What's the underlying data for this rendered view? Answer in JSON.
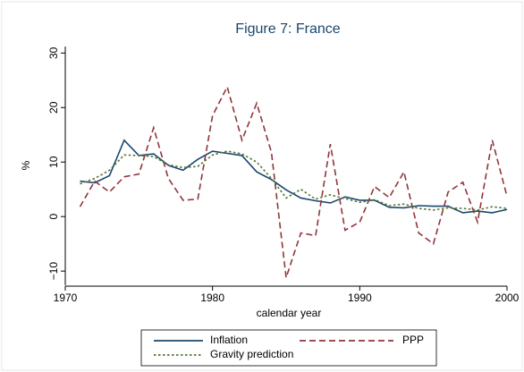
{
  "chart_data": {
    "type": "line",
    "title": "Figure 7: France",
    "xlabel": "calendar year",
    "ylabel": "%",
    "x": [
      1971,
      1972,
      1973,
      1974,
      1975,
      1976,
      1977,
      1978,
      1979,
      1980,
      1981,
      1982,
      1983,
      1984,
      1985,
      1986,
      1987,
      1988,
      1989,
      1990,
      1991,
      1992,
      1993,
      1994,
      1995,
      1996,
      1997,
      1998,
      1999,
      2000
    ],
    "series": [
      {
        "name": "Inflation",
        "color": "#1a476f",
        "line_style": "solid",
        "values": [
          6.5,
          6.2,
          7.5,
          14.0,
          11.2,
          11.5,
          9.4,
          8.5,
          10.5,
          12.0,
          11.6,
          11.2,
          8.2,
          6.8,
          4.9,
          3.4,
          2.9,
          2.5,
          3.6,
          3.0,
          3.0,
          1.7,
          1.6,
          2.0,
          1.9,
          1.9,
          0.7,
          1.0,
          0.7,
          1.3
        ]
      },
      {
        "name": "PPP",
        "color": "#90353b",
        "line_style": "dash",
        "values": [
          1.8,
          6.5,
          4.5,
          7.3,
          7.8,
          16.3,
          7.0,
          3.0,
          3.2,
          18.5,
          23.8,
          14.0,
          20.8,
          11.8,
          -11.2,
          -3.0,
          -3.5,
          13.3,
          -2.5,
          -1.0,
          5.5,
          3.5,
          8.2,
          -3.0,
          -5.0,
          4.5,
          6.3,
          -1.0,
          14.0,
          3.7
        ]
      },
      {
        "name": "Gravity prediction",
        "color": "#55752f",
        "line_style": "dot",
        "values": [
          6.0,
          7.0,
          8.5,
          11.3,
          11.2,
          11.0,
          9.5,
          9.0,
          9.2,
          11.3,
          12.0,
          11.5,
          10.0,
          7.0,
          3.4,
          5.0,
          3.2,
          4.0,
          3.3,
          2.6,
          3.1,
          2.0,
          2.3,
          1.5,
          1.2,
          1.6,
          1.5,
          1.2,
          1.8,
          1.5
        ]
      }
    ],
    "xlim": [
      1970,
      2000
    ],
    "xticks": [
      1970,
      1980,
      1990,
      2000
    ],
    "ylim": [
      -12.6,
      31.2
    ],
    "yticks": [
      {
        "value": -10,
        "label": "−10"
      },
      0,
      10,
      20,
      30
    ],
    "grid": false
  }
}
